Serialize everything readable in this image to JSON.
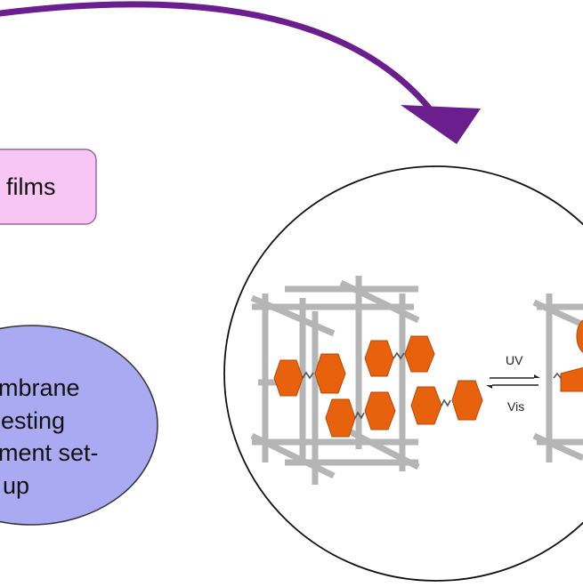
{
  "boxes": {
    "films_label": "films"
  },
  "ellipse_left": {
    "line1": "mbrane",
    "line2": "esting",
    "line3": "ment set-",
    "line4": "up"
  },
  "reaction": {
    "forward_label": "UV",
    "reverse_label": "Vis"
  },
  "colors": {
    "arrow": "#6b1f8f",
    "films_box_fill": "#f7c6f5",
    "films_box_stroke": "#9a6a9a",
    "ellipse_fill": "#aaaaf2",
    "ellipse_stroke": "#333333",
    "framework": "#b5b5b5",
    "molecule": "#e8620e",
    "molecule_stroke": "#b54705"
  }
}
